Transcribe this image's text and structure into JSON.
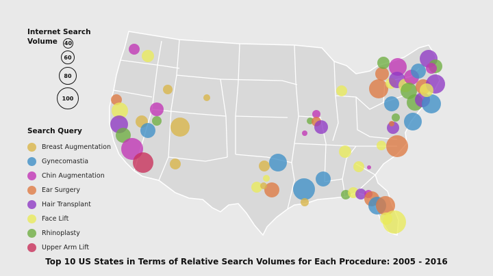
{
  "size_legend": {
    "title": "Internet Search\nVolume",
    "values": [
      "40",
      "60",
      "80",
      "100"
    ]
  },
  "query_legend": {
    "title": "Search Query",
    "items": [
      {
        "label": "Breast Augmentation",
        "color": "#d9b548"
      },
      {
        "label": "Gynecomastia",
        "color": "#3f8fc6"
      },
      {
        "label": "Chin Augmentation",
        "color": "#c034b5"
      },
      {
        "label": "Ear Surgery",
        "color": "#de7a43"
      },
      {
        "label": "Hair Transplant",
        "color": "#8f3ac4"
      },
      {
        "label": "Face Lift",
        "color": "#e9ea5b"
      },
      {
        "label": "Rhinoplasty",
        "color": "#6fae42"
      },
      {
        "label": "Upper Arm Lift",
        "color": "#c8305a"
      }
    ]
  },
  "caption": "Top 10 US States in Terms of Relative Search Volumes for Each Procedure: 2005 - 2016",
  "map": {
    "land_color": "#d9d9d9",
    "border_color": "#ffffff"
  }
}
